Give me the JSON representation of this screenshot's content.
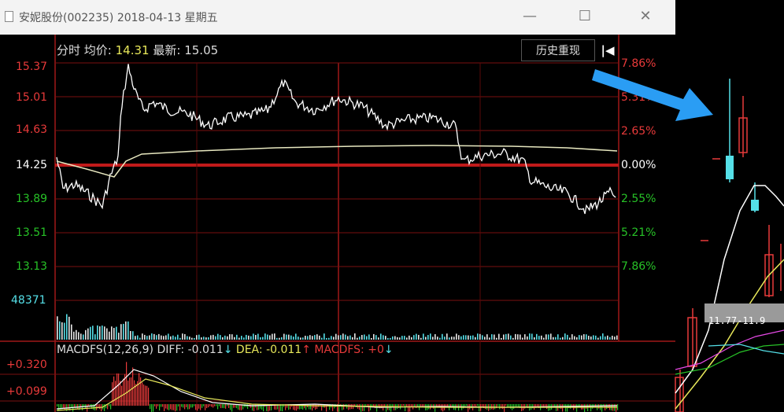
{
  "window": {
    "title": "安妮股份(002235) 2018-04-13 星期五",
    "minimize": "—",
    "maximize": "☐",
    "close": "✕"
  },
  "toolbar": {
    "history_label": "历史重现",
    "back_icon": "arrow-left-bar-icon"
  },
  "header": {
    "mode": "分时",
    "avg_label": "均价:",
    "avg_value": "14.31",
    "latest_label": "最新:",
    "latest_value": "15.05"
  },
  "price_axis": [
    "15.37",
    "15.01",
    "14.63",
    "14.25",
    "13.89",
    "13.51",
    "13.13"
  ],
  "pct_axis": [
    "7.86%",
    "5.31%",
    "2.65%",
    "0.00%",
    "2.55%",
    "5.21%",
    "7.86%"
  ],
  "volume_axis_max": "48371",
  "macd": {
    "name": "MACDFS(12,26,9)",
    "diff_label": "DIFF:",
    "diff_value": "-0.011",
    "diff_arrow": "↓",
    "dea_label": "DEA:",
    "dea_value": "-0.011",
    "dea_arrow": "↑",
    "macdfs_label": "MACDFS:",
    "macdfs_value": "+0",
    "macdfs_arrow": "↓",
    "axis_top": "+0.320",
    "axis_mid": "+0.099"
  },
  "right_panel": {
    "price_label": "11.77-11.9"
  },
  "colors": {
    "up": "#e83a3a",
    "down": "#27c227",
    "white_line": "#ffffff",
    "avg_line": "#e8e8c0",
    "grid": "#8a1010",
    "cyan": "#55e0e8",
    "yellow": "#e8e85a",
    "arrow_blue": "#2a9df4"
  }
}
